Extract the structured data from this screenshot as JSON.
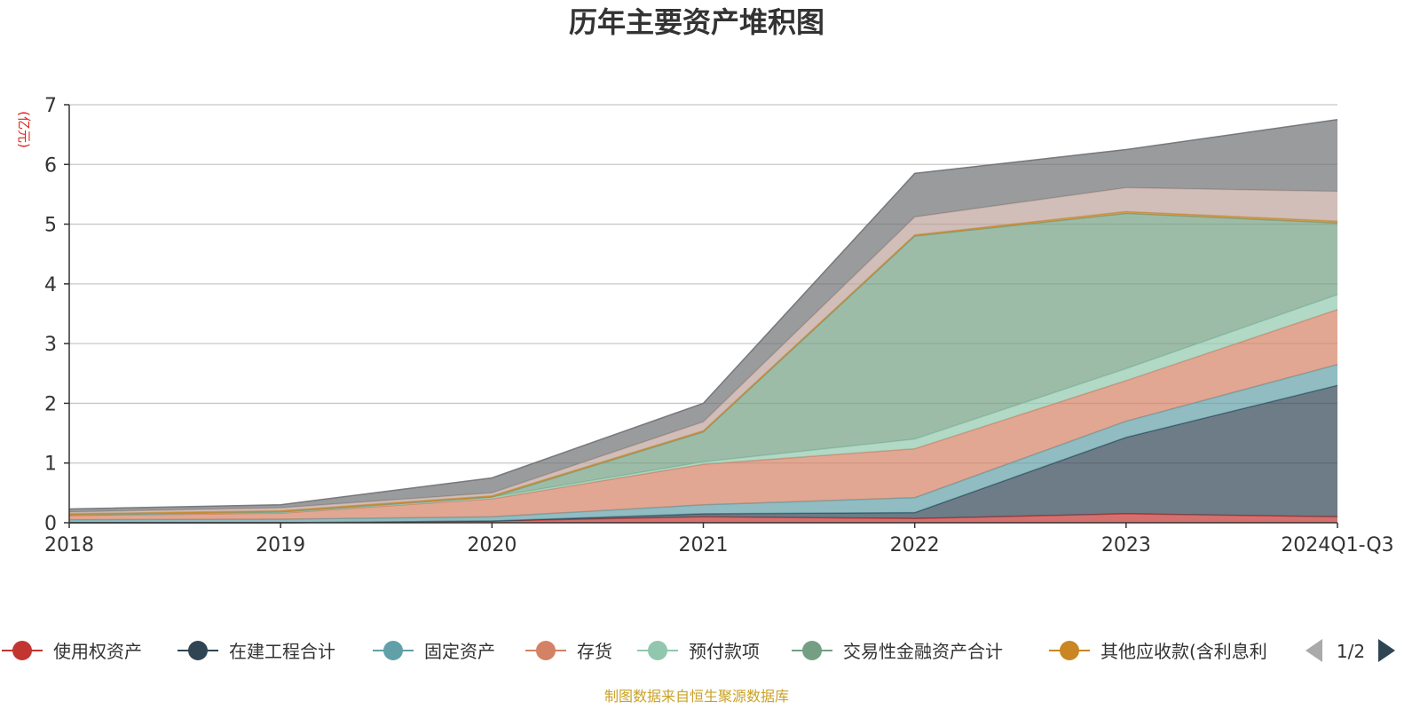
{
  "chart_data": {
    "type": "area",
    "stacked": true,
    "title": "历年主要资产堆积图",
    "unit_label": "(亿元)",
    "source_note": "制图数据来自恒生聚源数据库",
    "categories": [
      "2018",
      "2019",
      "2020",
      "2021",
      "2022",
      "2023",
      "2024Q1-Q3"
    ],
    "ylim": [
      0,
      7
    ],
    "yticks": [
      0,
      1,
      2,
      3,
      4,
      5,
      6,
      7
    ],
    "grid": true,
    "legend_position": "bottom",
    "legend_page": "1/2",
    "series": [
      {
        "name": "使用权资产",
        "color": "#c23531",
        "values": [
          0.0,
          0.0,
          0.03,
          0.1,
          0.07,
          0.15,
          0.1
        ]
      },
      {
        "name": "在建工程合计",
        "color": "#2f4554",
        "values": [
          0.0,
          0.0,
          0.0,
          0.05,
          0.1,
          1.28,
          2.2
        ]
      },
      {
        "name": "固定资产",
        "color": "#61a0a8",
        "values": [
          0.05,
          0.06,
          0.07,
          0.15,
          0.25,
          0.27,
          0.35
        ]
      },
      {
        "name": "存货",
        "color": "#d48265",
        "values": [
          0.07,
          0.1,
          0.3,
          0.68,
          0.82,
          0.68,
          0.92
        ]
      },
      {
        "name": "预付款项",
        "color": "#91c7ae",
        "values": [
          0.01,
          0.02,
          0.03,
          0.04,
          0.16,
          0.2,
          0.25
        ]
      },
      {
        "name": "交易性金融资产合计",
        "color": "#749f83",
        "values": [
          0.0,
          0.0,
          0.0,
          0.5,
          3.4,
          2.6,
          1.2
        ]
      },
      {
        "name": "其他应收款(含利息利",
        "color": "#ca8622",
        "values": [
          0.02,
          0.02,
          0.02,
          0.02,
          0.02,
          0.03,
          0.03
        ]
      },
      {
        "name": "",
        "color": "#bda29a",
        "values": [
          0.03,
          0.05,
          0.05,
          0.15,
          0.3,
          0.4,
          0.5
        ]
      },
      {
        "name": "",
        "color": "#6e7074",
        "values": [
          0.05,
          0.05,
          0.25,
          0.31,
          0.73,
          0.64,
          1.2
        ]
      }
    ]
  }
}
